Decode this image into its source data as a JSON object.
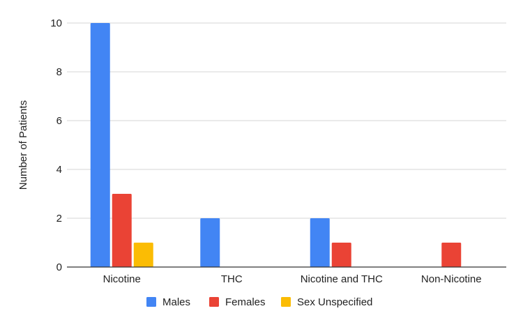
{
  "chart_data": {
    "type": "bar",
    "title": "",
    "xlabel": "",
    "ylabel": "Number of Patients",
    "categories": [
      "Nicotine",
      "THC",
      "Nicotine and THC",
      "Non-Nicotine"
    ],
    "series": [
      {
        "name": "Males",
        "color": "#4285F4",
        "values": [
          10,
          2,
          2,
          0
        ]
      },
      {
        "name": "Females",
        "color": "#EA4335",
        "values": [
          3,
          0,
          1,
          1
        ]
      },
      {
        "name": "Sex Unspecified",
        "color": "#FBBC04",
        "values": [
          1,
          0,
          0,
          0
        ]
      }
    ],
    "ylim": [
      0,
      10
    ],
    "yticks": [
      "0",
      "2",
      "4",
      "6",
      "8",
      "10"
    ],
    "grid": true,
    "legend_position": "bottom"
  }
}
